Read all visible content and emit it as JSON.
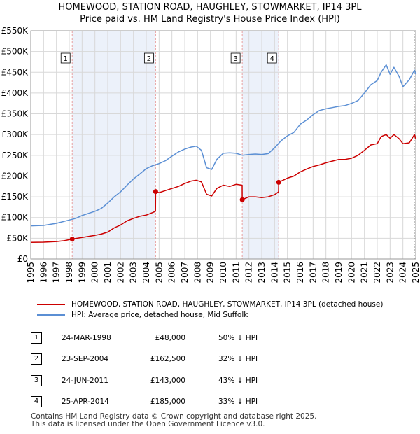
{
  "title": {
    "line1": "HOMEWOOD, STATION ROAD, HAUGHLEY, STOWMARKET, IP14 3PL",
    "line2": "Price paid vs. HM Land Registry's House Price Index (HPI)"
  },
  "colors": {
    "property": "#cc0000",
    "hpi": "#5b8fd4",
    "shade": "#dce6f5",
    "vline": "#e8a0a0",
    "grid": "#d8d8d8"
  },
  "chart_data": {
    "type": "line",
    "title": "Price paid vs. HM Land Registry's House Price Index (HPI)",
    "xlim": [
      1995,
      2025
    ],
    "ylim": [
      0,
      550000
    ],
    "y_ticks": [
      0,
      50000,
      100000,
      150000,
      200000,
      250000,
      300000,
      350000,
      400000,
      450000,
      500000,
      550000
    ],
    "y_tick_labels": [
      "£0",
      "£50K",
      "£100K",
      "£150K",
      "£200K",
      "£250K",
      "£300K",
      "£350K",
      "£400K",
      "£450K",
      "£500K",
      "£550K"
    ],
    "x_ticks": [
      1995,
      1996,
      1997,
      1998,
      1999,
      2000,
      2001,
      2002,
      2003,
      2004,
      2005,
      2006,
      2007,
      2008,
      2009,
      2010,
      2011,
      2012,
      2013,
      2014,
      2015,
      2016,
      2017,
      2018,
      2019,
      2020,
      2021,
      2022,
      2023,
      2024,
      2025
    ],
    "x_tick_labels": [
      "1995",
      "1996",
      "1997",
      "1998",
      "1999",
      "2000",
      "2001",
      "2002",
      "2003",
      "2004",
      "2005",
      "2006",
      "2007",
      "2008",
      "2009",
      "2010",
      "2011",
      "2012",
      "2013",
      "2014",
      "2015",
      "2016",
      "2017",
      "2018",
      "2019",
      "2020",
      "2021",
      "2022",
      "2023",
      "2024",
      "2025"
    ],
    "shaded_ranges": [
      [
        1998.23,
        2004.73
      ],
      [
        2011.48,
        2014.32
      ]
    ],
    "series": [
      {
        "name": "HOMEWOOD, STATION ROAD, HAUGHLEY, STOWMARKET, IP14 3PL (detached house)",
        "color": "#cc0000",
        "x": [
          1995.0,
          1996.0,
          1997.0,
          1997.6,
          1998.23,
          1999.0,
          2000.0,
          2000.5,
          2001.0,
          2001.5,
          2002.0,
          2002.5,
          2003.0,
          2003.5,
          2004.0,
          2004.5,
          2004.72,
          2004.73,
          2005.0,
          2005.5,
          2006.0,
          2006.5,
          2007.0,
          2007.5,
          2007.9,
          2008.3,
          2008.7,
          2009.1,
          2009.5,
          2010.0,
          2010.5,
          2011.0,
          2011.47,
          2011.48,
          2012.0,
          2012.5,
          2013.0,
          2013.5,
          2014.0,
          2014.31,
          2014.32,
          2015.0,
          2015.5,
          2016.0,
          2016.5,
          2017.0,
          2017.5,
          2018.0,
          2018.5,
          2019.0,
          2019.5,
          2020.0,
          2020.5,
          2021.0,
          2021.5,
          2022.0,
          2022.3,
          2022.7,
          2023.0,
          2023.3,
          2023.7,
          2024.0,
          2024.5,
          2024.9,
          2025.0
        ],
        "y": [
          40000,
          40500,
          42000,
          44000,
          48000,
          52000,
          57000,
          60000,
          65000,
          75000,
          82000,
          92000,
          98000,
          103000,
          106000,
          112000,
          115000,
          162500,
          160000,
          165000,
          170000,
          175000,
          182000,
          188000,
          190000,
          186000,
          156000,
          152000,
          170000,
          178000,
          175000,
          180000,
          178000,
          143000,
          150000,
          150000,
          148000,
          150000,
          155000,
          162000,
          185000,
          195000,
          200000,
          210000,
          217000,
          223000,
          227000,
          232000,
          236000,
          240000,
          240000,
          243000,
          250000,
          262000,
          275000,
          278000,
          295000,
          300000,
          291000,
          300000,
          290000,
          278000,
          280000,
          300000,
          290000
        ]
      },
      {
        "name": "HPI: Average price, detached house, Mid Suffolk",
        "color": "#5b8fd4",
        "x": [
          1995.0,
          1996.0,
          1997.0,
          1998.0,
          1998.5,
          1999.0,
          2000.0,
          2000.5,
          2001.0,
          2001.5,
          2002.0,
          2002.5,
          2003.0,
          2003.5,
          2004.0,
          2004.5,
          2005.0,
          2005.5,
          2006.0,
          2006.5,
          2007.0,
          2007.5,
          2007.9,
          2008.3,
          2008.7,
          2009.1,
          2009.5,
          2010.0,
          2010.5,
          2011.0,
          2011.5,
          2012.0,
          2012.5,
          2013.0,
          2013.5,
          2014.0,
          2014.5,
          2015.0,
          2015.5,
          2016.0,
          2016.5,
          2017.0,
          2017.5,
          2018.0,
          2018.5,
          2019.0,
          2019.5,
          2020.0,
          2020.5,
          2021.0,
          2021.5,
          2022.0,
          2022.3,
          2022.7,
          2023.0,
          2023.3,
          2023.7,
          2024.0,
          2024.5,
          2024.9,
          2025.0
        ],
        "y": [
          80000,
          81000,
          86000,
          94000,
          98000,
          105000,
          115000,
          122000,
          135000,
          150000,
          162000,
          178000,
          193000,
          205000,
          218000,
          225000,
          230000,
          237000,
          248000,
          258000,
          265000,
          270000,
          272000,
          262000,
          220000,
          216000,
          240000,
          255000,
          256000,
          255000,
          250000,
          252000,
          253000,
          252000,
          254000,
          268000,
          285000,
          297000,
          305000,
          325000,
          335000,
          348000,
          358000,
          362000,
          365000,
          368000,
          370000,
          375000,
          382000,
          400000,
          420000,
          430000,
          450000,
          468000,
          445000,
          462000,
          440000,
          415000,
          432000,
          455000,
          445000
        ]
      }
    ],
    "sales": [
      {
        "label": "1",
        "x": 1998.23,
        "y": 48000
      },
      {
        "label": "2",
        "x": 2004.73,
        "y": 162500
      },
      {
        "label": "3",
        "x": 2011.48,
        "y": 143000
      },
      {
        "label": "4",
        "x": 2014.32,
        "y": 185000
      }
    ]
  },
  "legend": {
    "property": "HOMEWOOD, STATION ROAD, HAUGHLEY, STOWMARKET, IP14 3PL (detached house)",
    "hpi": "HPI: Average price, detached house, Mid Suffolk"
  },
  "transactions": [
    {
      "num": "1",
      "date": "24-MAR-1998",
      "price": "£48,000",
      "hpi": "50% ↓ HPI"
    },
    {
      "num": "2",
      "date": "23-SEP-2004",
      "price": "£162,500",
      "hpi": "32% ↓ HPI"
    },
    {
      "num": "3",
      "date": "24-JUN-2011",
      "price": "£143,000",
      "hpi": "43% ↓ HPI"
    },
    {
      "num": "4",
      "date": "25-APR-2014",
      "price": "£185,000",
      "hpi": "33% ↓ HPI"
    }
  ],
  "footer": {
    "line1": "Contains HM Land Registry data © Crown copyright and database right 2025.",
    "line2": "This data is licensed under the Open Government Licence v3.0."
  }
}
